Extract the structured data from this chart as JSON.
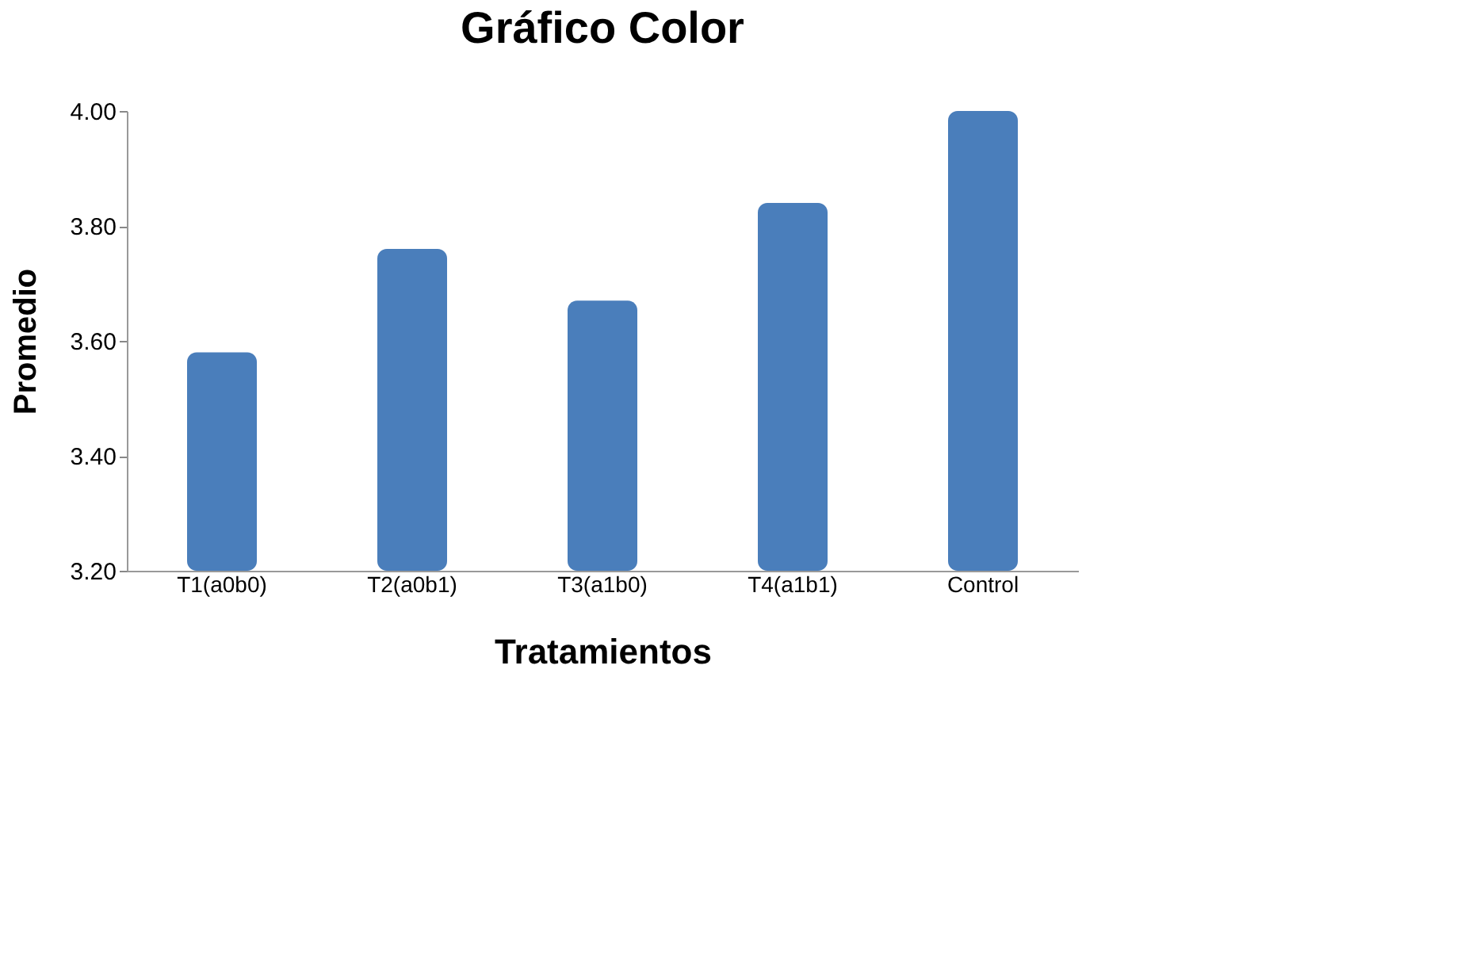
{
  "chart_data": {
    "type": "bar",
    "title": "Gráfico Color",
    "xlabel": "Tratamientos",
    "ylabel": "Promedio",
    "categories": [
      "T1(a0b0)",
      "T2(a0b1)",
      "T3(a1b0)",
      "T4(a1b1)",
      "Control"
    ],
    "values": [
      3.58,
      3.76,
      3.67,
      3.84,
      4.0
    ],
    "color": "#4a7ebb",
    "ylim": [
      3.2,
      4.0
    ],
    "yticks": [
      {
        "value": 3.2,
        "label": "3.20"
      },
      {
        "value": 3.4,
        "label": "3.40"
      },
      {
        "value": 3.6,
        "label": "3.60"
      },
      {
        "value": 3.8,
        "label": "3.80"
      },
      {
        "value": 4.0,
        "label": "4.00"
      }
    ],
    "grid": false
  }
}
